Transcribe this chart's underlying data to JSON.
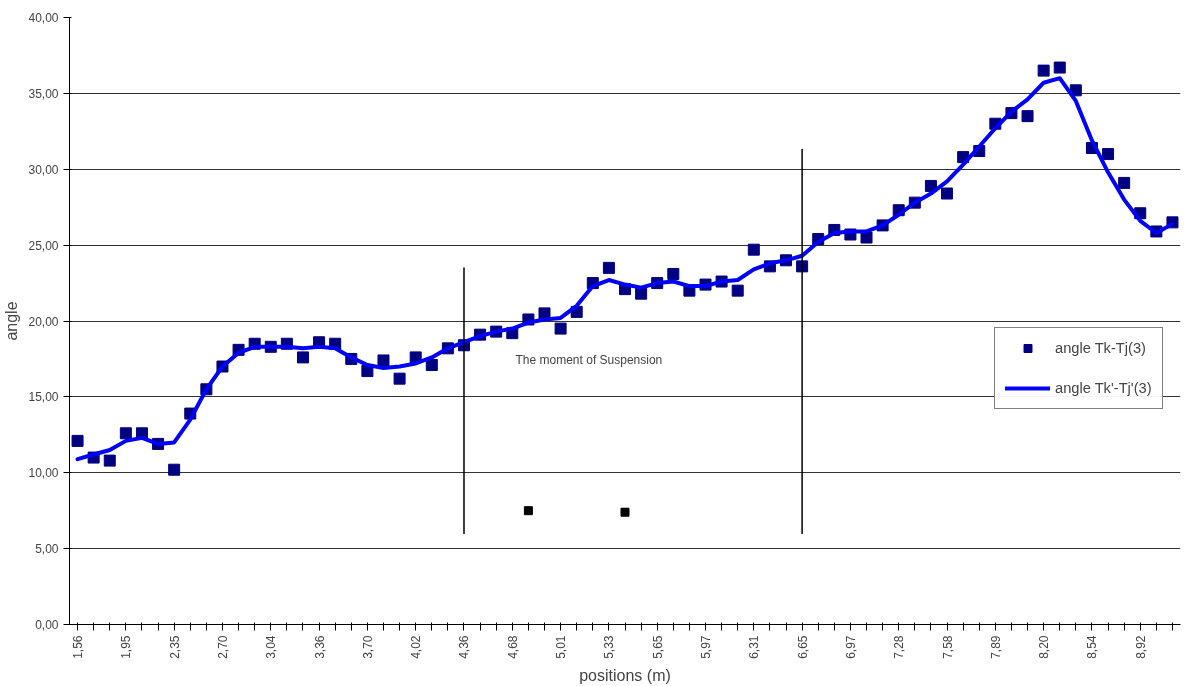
{
  "chart_data": {
    "type": "scatter",
    "xlabel": "positions (m)",
    "ylabel": "angle",
    "categories": [
      "1,56",
      null,
      null,
      "1,95",
      null,
      null,
      "2,35",
      null,
      null,
      "2,70",
      null,
      null,
      "3,04",
      null,
      null,
      "3,36",
      null,
      null,
      "3,70",
      null,
      null,
      "4,02",
      null,
      null,
      "4,36",
      null,
      null,
      "4,68",
      null,
      null,
      "5,01",
      null,
      null,
      "5,33",
      null,
      null,
      "5,65",
      null,
      null,
      "5,97",
      null,
      null,
      "6,31",
      null,
      null,
      "6,65",
      null,
      null,
      "6,97",
      null,
      null,
      "7,28",
      null,
      null,
      "7,58",
      null,
      null,
      "7,89",
      null,
      null,
      "8,20",
      null,
      null,
      "8,54",
      null,
      null,
      "8,92",
      null,
      null
    ],
    "series": [
      {
        "name": "angle Tk-Tj(3)",
        "marker": "square",
        "color": "#000080",
        "values": [
          12.1,
          11.0,
          10.8,
          12.6,
          12.6,
          11.9,
          10.2,
          13.9,
          15.5,
          17.0,
          18.1,
          18.5,
          18.3,
          18.5,
          17.6,
          18.6,
          18.5,
          17.5,
          16.7,
          17.4,
          16.2,
          17.6,
          17.1,
          18.2,
          18.4,
          19.1,
          19.3,
          19.2,
          20.1,
          20.5,
          19.5,
          20.6,
          22.5,
          23.5,
          22.1,
          21.8,
          22.5,
          23.1,
          22.0,
          22.4,
          22.6,
          22.0,
          24.7,
          23.6,
          24.0,
          23.6,
          25.4,
          26.0,
          25.7,
          25.5,
          26.3,
          27.3,
          27.8,
          28.9,
          28.4,
          30.8,
          31.2,
          33.0,
          33.7,
          33.5,
          36.5,
          36.7,
          35.2,
          31.4,
          31.0,
          29.1,
          27.1,
          25.9,
          26.5
        ]
      },
      {
        "name": "angle Tk'-Tj'(3)",
        "type": "line",
        "marker": "none",
        "color": "#0000ff",
        "values": [
          10.9,
          11.2,
          11.5,
          12.1,
          12.3,
          11.9,
          12.0,
          13.5,
          15.5,
          17.0,
          17.9,
          18.3,
          18.3,
          18.3,
          18.2,
          18.3,
          18.2,
          17.6,
          17.1,
          16.9,
          17.0,
          17.2,
          17.6,
          18.2,
          18.6,
          19.0,
          19.3,
          19.5,
          19.9,
          20.1,
          20.2,
          21.0,
          22.3,
          22.7,
          22.4,
          22.2,
          22.5,
          22.6,
          22.3,
          22.3,
          22.6,
          22.7,
          23.4,
          23.8,
          24.0,
          24.3,
          25.2,
          25.8,
          25.9,
          25.9,
          26.3,
          27.0,
          27.8,
          28.4,
          29.2,
          30.3,
          31.5,
          32.7,
          33.8,
          34.6,
          35.7,
          36.0,
          34.5,
          31.9,
          29.8,
          28.0,
          26.6,
          25.8,
          26.4
        ]
      },
      {
        "type": "scatter",
        "marker": "square",
        "color": "#000000",
        "values": [
          null,
          null,
          null,
          null,
          null,
          null,
          null,
          null,
          null,
          null,
          null,
          null,
          null,
          null,
          null,
          null,
          null,
          null,
          null,
          null,
          null,
          null,
          null,
          null,
          null,
          null,
          null,
          null,
          7.5,
          null,
          null,
          null,
          null,
          null,
          7.4,
          null,
          null,
          null,
          null,
          null,
          null,
          null,
          null,
          null,
          null,
          null,
          null,
          null,
          null,
          null,
          null,
          null,
          null,
          null,
          null,
          null,
          null,
          null,
          null,
          null,
          null,
          null,
          null,
          null,
          null,
          null,
          null,
          null,
          null
        ]
      },
      {
        "type": "line",
        "marker": "none",
        "color": "#000000",
        "x": [
          "4,36",
          "4,36"
        ],
        "values": [
          6.0,
          23.5
        ]
      },
      {
        "type": "line",
        "marker": "none",
        "color": "#000000",
        "x": [
          "6,65",
          "6,65"
        ],
        "values": [
          6.0,
          31.3
        ]
      }
    ],
    "annotations": [
      "The moment of Suspension"
    ],
    "ylim": [
      0,
      40
    ],
    "yticks": [
      {
        "value": 0,
        "label": "0,00"
      },
      {
        "value": 5,
        "label": "5,00"
      },
      {
        "value": 10,
        "label": "10,00"
      },
      {
        "value": 15,
        "label": "15,00"
      },
      {
        "value": 20,
        "label": "20,00"
      },
      {
        "value": 25,
        "label": "25,00"
      },
      {
        "value": 30,
        "label": "30,00"
      },
      {
        "value": 35,
        "label": "35,00"
      },
      {
        "value": 40,
        "label": "40,00"
      }
    ],
    "grid": "y",
    "legend": "right",
    "line_style": "solid"
  }
}
